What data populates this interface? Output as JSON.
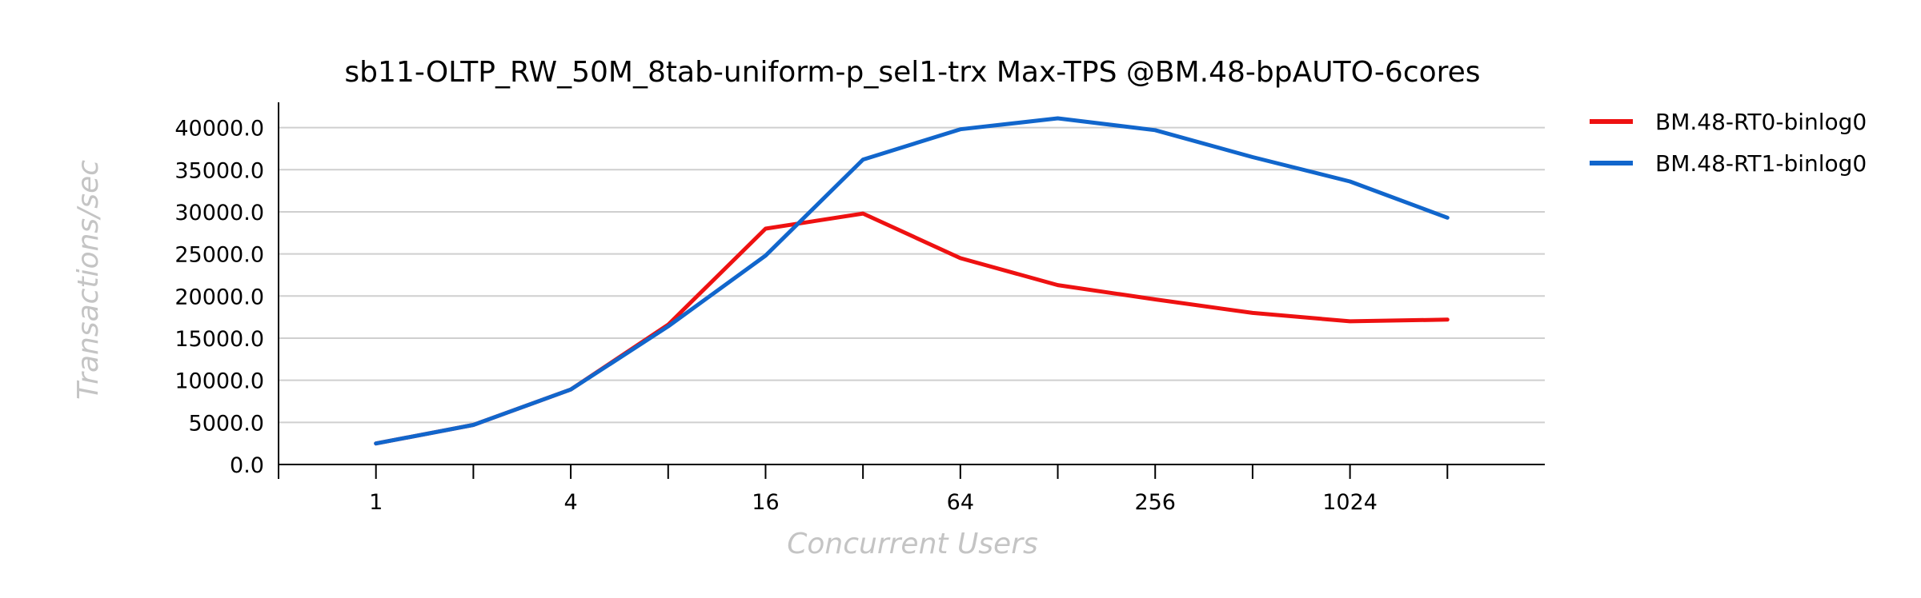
{
  "chart_data": {
    "type": "line",
    "title": "sb11-OLTP_RW_50M_8tab-uniform-p_sel1-trx Max-TPS @BM.48-bpAUTO-6cores",
    "xlabel": "Concurrent Users",
    "ylabel": "Transactions/sec",
    "x_scale": "log2",
    "x": [
      1,
      2,
      4,
      8,
      16,
      32,
      64,
      128,
      256,
      512,
      1024,
      2048
    ],
    "x_tick_labels": [
      "1",
      "4",
      "16",
      "64",
      "256",
      "1024"
    ],
    "x_tick_values": [
      1,
      4,
      16,
      64,
      256,
      1024
    ],
    "xlim": [
      0.5,
      4096
    ],
    "ylim": [
      0,
      43000
    ],
    "y_ticks": [
      0,
      5000,
      10000,
      15000,
      20000,
      25000,
      30000,
      35000,
      40000
    ],
    "y_tick_labels": [
      "0.0",
      "5000.0",
      "10000.0",
      "15000.0",
      "20000.0",
      "25000.0",
      "30000.0",
      "35000.0",
      "40000.0"
    ],
    "grid": true,
    "legend_position": "outside-top-right",
    "series": [
      {
        "name": "BM.48-RT0-binlog0",
        "color": "#ee1111",
        "values": [
          2500,
          4700,
          8900,
          16600,
          28000,
          29800,
          24500,
          21300,
          19600,
          18000,
          17000,
          17200
        ]
      },
      {
        "name": "BM.48-RT1-binlog0",
        "color": "#1166cc",
        "values": [
          2500,
          4700,
          8900,
          16400,
          24800,
          36200,
          39800,
          41100,
          39700,
          36500,
          33600,
          29300
        ]
      }
    ]
  }
}
